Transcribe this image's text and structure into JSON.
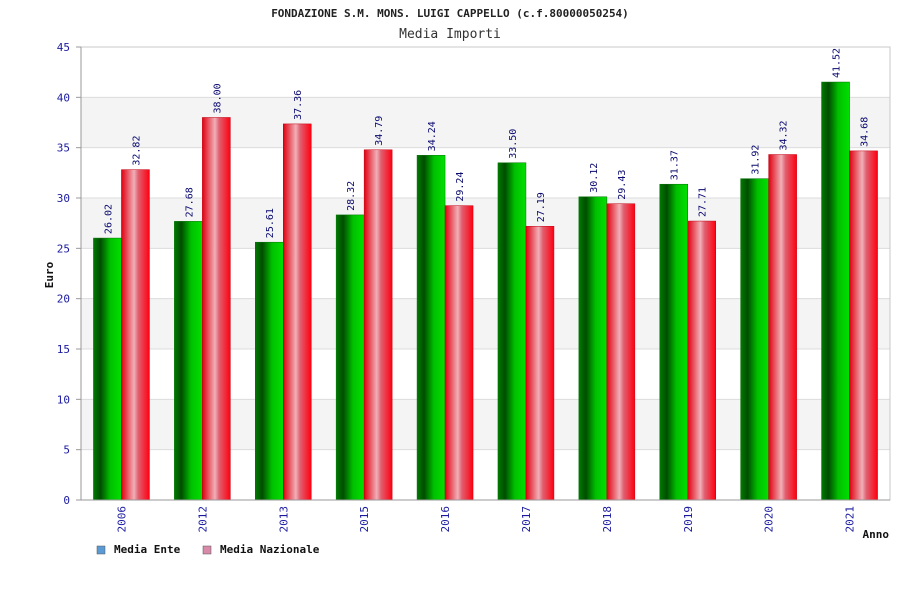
{
  "chart_data": {
    "type": "bar",
    "title": "FONDAZIONE S.M. MONS. LUIGI CAPPELLO (c.f.80000050254)",
    "subtitle": "Media Importi",
    "xlabel": "Anno",
    "ylabel": "Euro",
    "ylim": [
      0,
      45
    ],
    "yticks": [
      0,
      5,
      10,
      15,
      20,
      25,
      30,
      35,
      40,
      45
    ],
    "grid": true,
    "legend_position": "bottom-left",
    "categories": [
      "2006",
      "2012",
      "2013",
      "2015",
      "2016",
      "2017",
      "2018",
      "2019",
      "2020",
      "2021"
    ],
    "series": [
      {
        "name": "Media Ente",
        "color": "#00a000",
        "legend_color": "#5b9bd5",
        "values": [
          26.02,
          27.68,
          25.61,
          28.32,
          34.24,
          33.5,
          30.12,
          31.37,
          31.92,
          41.52
        ],
        "labels": [
          "26.02",
          "27.68",
          "25.61",
          "28.32",
          "34.24",
          "33.50",
          "30.12",
          "31.37",
          "31.92",
          "41.52"
        ]
      },
      {
        "name": "Media Nazionale",
        "color": "#e01020",
        "legend_color": "#d88aa8",
        "values": [
          32.82,
          38.0,
          37.36,
          34.79,
          29.24,
          27.19,
          29.43,
          27.71,
          34.32,
          34.68
        ],
        "labels": [
          "32.82",
          "38.00",
          "37.36",
          "34.79",
          "29.24",
          "27.19",
          "29.43",
          "27.71",
          "34.32",
          "34.68"
        ]
      }
    ]
  }
}
